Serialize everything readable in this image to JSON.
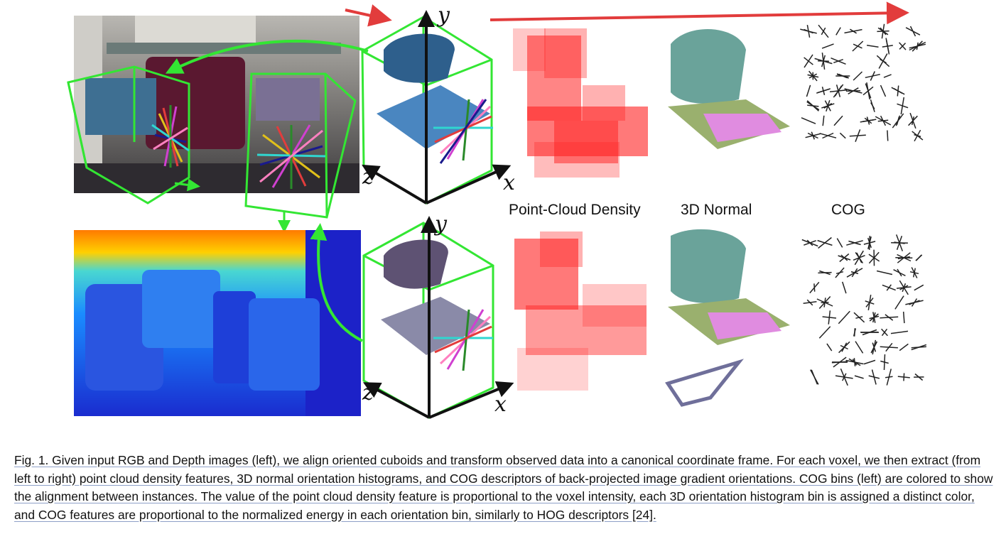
{
  "panels": {
    "density_label": "Point-Cloud Density",
    "normal_label": "3D Normal",
    "cog_label": "COG"
  },
  "axes": {
    "x": "x",
    "y": "y",
    "z": "z"
  },
  "caption": {
    "text": "Fig. 1. Given input RGB and Depth images (left), we align oriented cuboids and transform observed data into a canonical coordinate frame. For each voxel, we then extract (from left to right) point cloud density features, 3D normal orientation histograms, and COG descriptors of back-projected image gradient orientations. COG bins (left) are colored to show the alignment between instances. The value of the point cloud density feature is proportional to the voxel intensity, each 3D orientation histogram bin is assigned a distinct color, and COG features are proportional to the normalized energy in each orientation bin, similarly to HOG descriptors [24]."
  },
  "colors": {
    "cuboid": "#33e633",
    "arrow_red": "#e23c3c",
    "density": "#ff2020"
  }
}
